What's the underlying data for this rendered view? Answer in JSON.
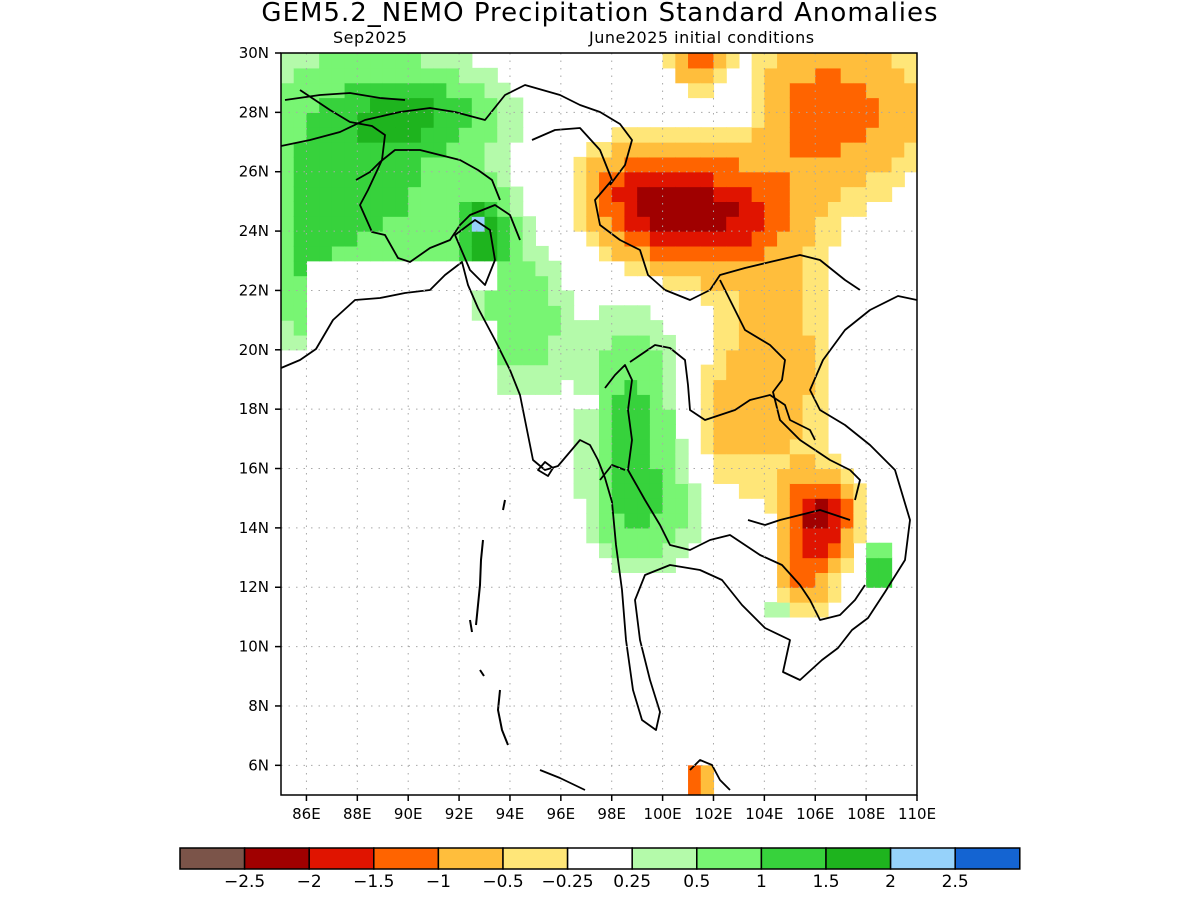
{
  "title": "GEM5.2_NEMO Precipitation Standard Anomalies",
  "subtitle_left": "Sep2025",
  "subtitle_right": "June2025 initial conditions",
  "map": {
    "lon_range": [
      85,
      110
    ],
    "lat_range": [
      5,
      30
    ],
    "lat_labels": [
      "30N",
      "28N",
      "26N",
      "24N",
      "22N",
      "20N",
      "18N",
      "16N",
      "14N",
      "12N",
      "10N",
      "8N",
      "6N"
    ],
    "lon_labels": [
      "86E",
      "88E",
      "90E",
      "92E",
      "94E",
      "96E",
      "98E",
      "100E",
      "102E",
      "104E",
      "106E",
      "108E",
      "110E"
    ],
    "grid": "dotted"
  },
  "legend": {
    "colors": [
      "#7b5449",
      "#a00000",
      "#e01400",
      "#ff6400",
      "#ffbe3c",
      "#ffe678",
      "#ffffff",
      "#b4faaa",
      "#78f573",
      "#37d23c",
      "#1eb41e",
      "#96d2fa",
      "#1464d2"
    ],
    "labels": [
      "−2.5",
      "−2",
      "−1.5",
      "−1",
      "−0.5",
      "−0.25",
      "0.25",
      "0.5",
      "1",
      "1.5",
      "2",
      "2.5"
    ]
  }
}
